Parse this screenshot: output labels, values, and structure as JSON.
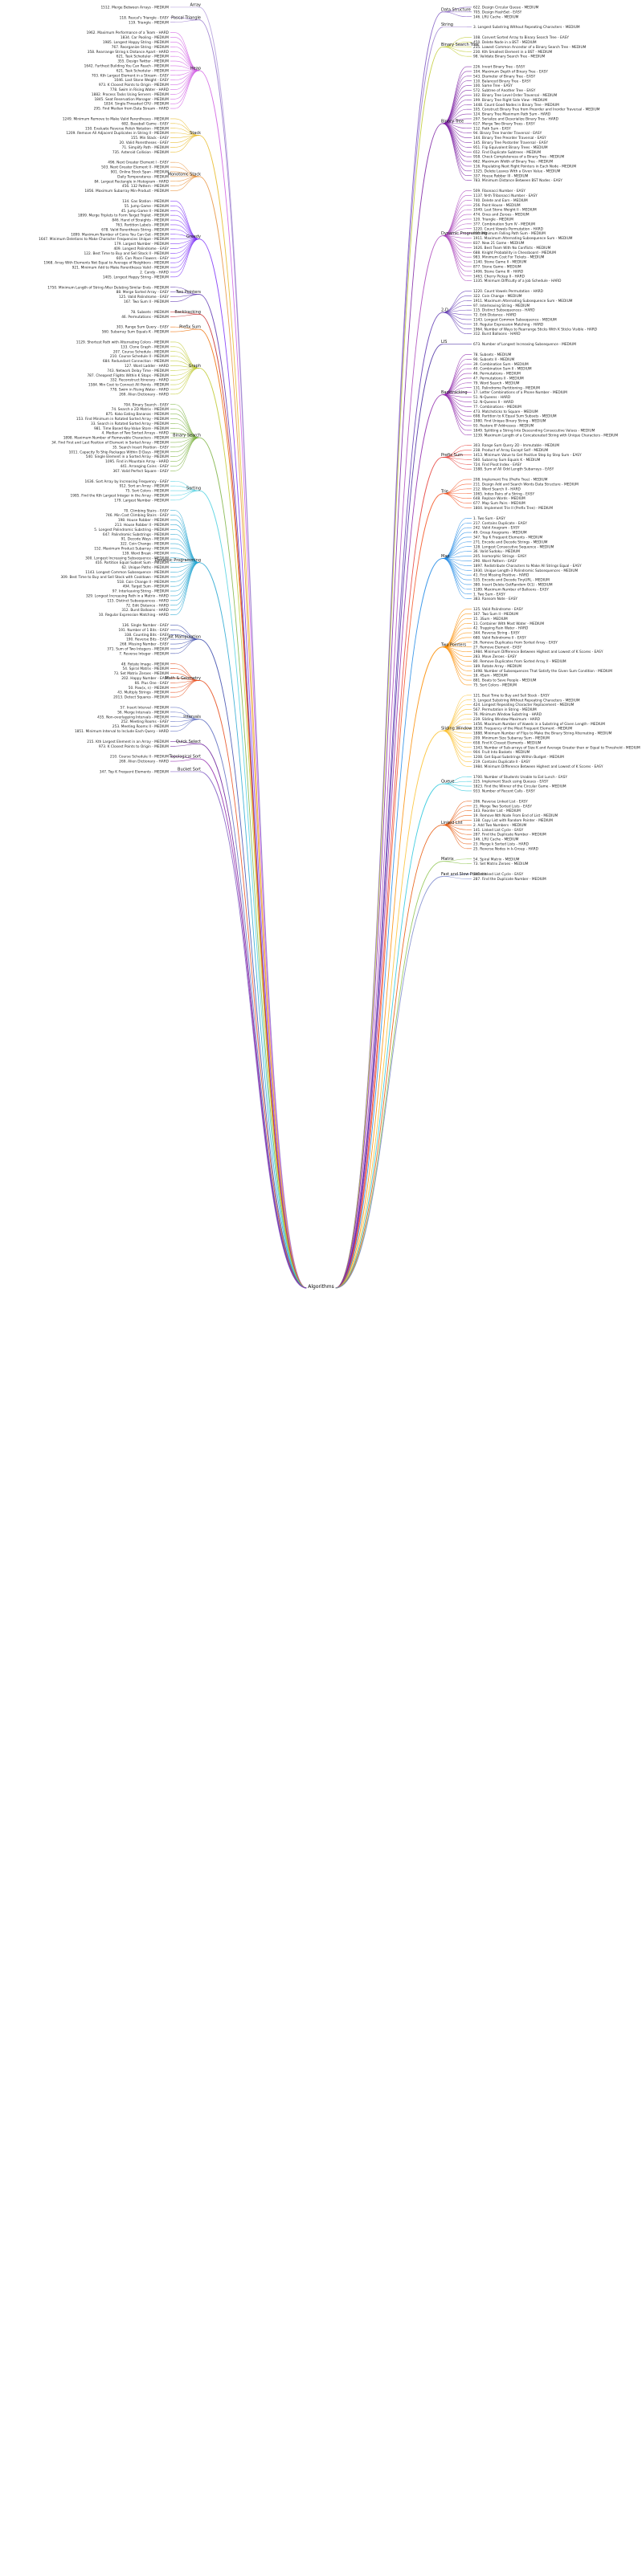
{
  "root": "Algorithms",
  "left": [
    {
      "name": "Array",
      "color": "#b39ddb",
      "items": [
        "1512. Merge Between Arrays - MEDIUM"
      ]
    },
    {
      "name": "Pascal Triangle",
      "color": "#9575cd",
      "items": [
        "118. Pascal's Triangle - EASY",
        "119. Triangle - MEDIUM"
      ]
    },
    {
      "name": "Heap",
      "color": "#d05ce3",
      "items": [
        "1962. Maximum Performance of a Team - HARD",
        "1834. Car Pooling - MEDIUM",
        "1985. Longest Happy String - MEDIUM",
        "767. Reorganize String - MEDIUM",
        "358. Rearrange String k Distance Apart - HARD",
        "621. Task Scheduler - MEDIUM",
        "355. Design Twitter - MEDIUM",
        "1642. Furthest Building You Can Reach - MEDIUM",
        "621. Task Scheduler - MEDIUM",
        "703. Kth Largest Element in a Stream - EASY",
        "1046. Last Stone Weight - EASY",
        "973. K Closest Points to Origin - MEDIUM",
        "778. Swim in Rising Water - HARD",
        "1882. Process Tasks Using Servers - MEDIUM",
        "1845. Seat Reservation Manager - MEDIUM",
        "1834. Single-Threaded CPU - MEDIUM",
        "295. Find Median from Data Stream - HARD"
      ]
    },
    {
      "name": "Stack",
      "color": "#e8b923",
      "items": [
        "1249. Minimum Remove to Make Valid Parentheses - MEDIUM",
        "682. Baseball Game - EASY",
        "150. Evaluate Reverse Polish Notation - MEDIUM",
        "1209. Remove All Adjacent Duplicates in String II - MEDIUM",
        "155. Min Stack - EASY",
        "20. Valid Parentheses - EASY",
        "71. Simplify Path - MEDIUM",
        "735. Asteroid Collision - MEDIUM"
      ]
    },
    {
      "name": "Monotonic Stack",
      "color": "#e8913a",
      "items": [
        "496. Next Greater Element I - EASY",
        "503. Next Greater Element II - MEDIUM",
        "901. Online Stock Span - MEDIUM",
        "Daily Temperatures - MEDIUM",
        "84. Largest Rectangle in Histogram - HARD",
        "456. 132 Pattern - MEDIUM",
        "1856. Maximum Subarray Min-Product - MEDIUM"
      ]
    },
    {
      "name": "Greedy",
      "color": "#7b2ff7",
      "items": [
        "134. Gas Station - MEDIUM",
        "55. Jump Game - MEDIUM",
        "45. Jump Game II - MEDIUM",
        "1899. Merge Triplets to Form Target Triplet - MEDIUM",
        "846. Hand of Straights - MEDIUM",
        "763. Partition Labels - MEDIUM",
        "678. Valid Parenthesis String - MEDIUM",
        "1899. Maximum Number of Coins You Can Get - MEDIUM",
        "1647. Minimum Deletions to Make Character Frequencies Unique - MEDIUM",
        "179. Largest Number - MEDIUM",
        "409. Longest Palindrome - EASY",
        "122. Best Time to Buy and Sell Stock II - MEDIUM",
        "605. Can Place Flowers - EASY",
        "1968. Array With Elements Not Equal to Average of Neighbors - MEDIUM",
        "921. Minimum Add to Make Parentheses Valid - MEDIUM",
        "2. Candy - HARD",
        "1405. Longest Happy String - MEDIUM"
      ]
    },
    {
      "name": "Two Pointers",
      "color": "#5e35b1",
      "items": [
        "1750. Minimum Length of String After Deleting Similar Ends - MEDIUM",
        "88. Merge Sorted Array - EASY",
        "125. Valid Palindrome - EASY",
        "167. Two Sum II - MEDIUM"
      ]
    },
    {
      "name": "Backtracking",
      "color": "#c62828",
      "items": [
        "78. Subsets - MEDIUM",
        "46. Permutations - MEDIUM"
      ]
    },
    {
      "name": "Prefix Sum",
      "color": "#ef6c00",
      "items": [
        "303. Range Sum Query - EASY",
        "560. Subarray Sum Equals K - MEDIUM"
      ]
    },
    {
      "name": "Graph",
      "color": "#c0ca33",
      "items": [
        "1129. Shortest Path with Alternating Colors - MEDIUM",
        "133. Clone Graph - MEDIUM",
        "207. Course Schedule - MEDIUM",
        "210. Course Schedule II - MEDIUM",
        "684. Redundant Connection - MEDIUM",
        "127. Word Ladder - HARD",
        "743. Network Delay Time - MEDIUM",
        "787. Cheapest Flights Within K Stops - MEDIUM",
        "332. Reconstruct Itinerary - HARD",
        "1584. Min Cost to Connect All Points - MEDIUM",
        "778. Swim in Rising Water - HARD",
        "269. Alien Dictionary - HARD"
      ]
    },
    {
      "name": "Binary Search",
      "color": "#7cb342",
      "items": [
        "704. Binary Search - EASY",
        "74. Search a 2D Matrix - MEDIUM",
        "875. Koko Eating Bananas - MEDIUM",
        "153. Find Minimum in Rotated Sorted Array - MEDIUM",
        "33. Search in Rotated Sorted Array - MEDIUM",
        "981. Time Based Key-Value Store - MEDIUM",
        "4. Median of Two Sorted Arrays - HARD",
        "1898. Maximum Number of Removable Characters - MEDIUM",
        "34. Find First and Last Position of Element in Sorted Array - MEDIUM",
        "35. Search Insert Position - EASY",
        "1011. Capacity To Ship Packages Within D Days - MEDIUM",
        "540. Single Element in a Sorted Array - MEDIUM",
        "1095. Find in Mountain Array - HARD",
        "441. Arranging Coins - EASY",
        "367. Valid Perfect Square - EASY"
      ]
    },
    {
      "name": "Sorting",
      "color": "#4dd0e1",
      "items": [
        "1636. Sort Array by Increasing Frequency - EASY",
        "912. Sort an Array - MEDIUM",
        "75. Sort Colors - MEDIUM",
        "1985. Find the Kth Largest Integer in the Array - MEDIUM",
        "179. Largest Number - MEDIUM"
      ]
    },
    {
      "name": "Dynamic Programming",
      "color": "#26a6d1",
      "items": [
        "70. Climbing Stairs - EASY",
        "746. Min Cost Climbing Stairs - EASY",
        "198. House Robber - MEDIUM",
        "213. House Robber II - MEDIUM",
        "5. Longest Palindromic Substring - MEDIUM",
        "647. Palindromic Substrings - MEDIUM",
        "91. Decode Ways - MEDIUM",
        "322. Coin Change - MEDIUM",
        "152. Maximum Product Subarray - MEDIUM",
        "139. Word Break - MEDIUM",
        "300. Longest Increasing Subsequence - MEDIUM",
        "416. Partition Equal Subset Sum - MEDIUM",
        "62. Unique Paths - MEDIUM",
        "1143. Longest Common Subsequence - MEDIUM",
        "309. Best Time to Buy and Sell Stock with Cooldown - MEDIUM",
        "518. Coin Change II - MEDIUM",
        "494. Target Sum - MEDIUM",
        "97. Interleaving String - MEDIUM",
        "329. Longest Increasing Path in a Matrix - HARD",
        "115. Distinct Subsequences - HARD",
        "72. Edit Distance - HARD",
        "312. Burst Balloons - HARD",
        "10. Regular Expression Matching - HARD"
      ]
    },
    {
      "name": "Bit Manipulation",
      "color": "#3949ab",
      "items": [
        "136. Single Number - EASY",
        "191. Number of 1 Bits - EASY",
        "338. Counting Bits - EASY",
        "190. Reverse Bits - EASY",
        "268. Missing Number - EASY",
        "371. Sum of Two Integers - MEDIUM",
        "7. Reverse Integer - MEDIUM"
      ]
    },
    {
      "name": "Math & Geometry",
      "color": "#e64a19",
      "items": [
        "48. Rotate Image - MEDIUM",
        "54. Spiral Matrix - MEDIUM",
        "73. Set Matrix Zeroes - MEDIUM",
        "202. Happy Number - EASY",
        "66. Plus One - EASY",
        "50. Pow(x, n) - MEDIUM",
        "43. Multiply Strings - MEDIUM",
        "2013. Detect Squares - MEDIUM"
      ]
    },
    {
      "name": "Intervals",
      "color": "#5c6bc0",
      "items": [
        "57. Insert Interval - MEDIUM",
        "56. Merge Intervals - MEDIUM",
        "435. Non-overlapping Intervals - MEDIUM",
        "252. Meeting Rooms - EASY",
        "253. Meeting Rooms II - MEDIUM",
        "1851. Minimum Interval to Include Each Query - HARD"
      ]
    },
    {
      "name": "Quick Select",
      "color": "#6a1b9a",
      "items": [
        "215. Kth Largest Element in an Array - MEDIUM",
        "973. K Closest Points to Origin - MEDIUM"
      ]
    },
    {
      "name": "Topological Sort",
      "color": "#8e24aa",
      "items": [
        "210. Course Schedule II - MEDIUM",
        "269. Alien Dictionary - HARD"
      ]
    },
    {
      "name": "Bucket Sort",
      "color": "#7e57c2",
      "items": [
        "347. Top K Frequent Elements - MEDIUM"
      ]
    }
  ],
  "right": [
    {
      "name": "Data Structure",
      "color": "#7e57c2",
      "items": [
        "622. Design Circular Queue - MEDIUM",
        "705. Design HashSet - EASY",
        "146. LRU Cache - MEDIUM"
      ]
    },
    {
      "name": "String",
      "color": "#9575cd",
      "items": [
        "3. Longest Substring Without Repeating Characters - MEDIUM"
      ]
    },
    {
      "name": "Binary Search Tree",
      "color": "#c0ca33",
      "items": [
        "108. Convert Sorted Array to Binary Search Tree - EASY",
        "450. Delete Node in a BST - MEDIUM",
        "235. Lowest Common Ancestor of a Binary Search Tree - MEDIUM",
        "230. Kth Smallest Element in a BST - MEDIUM",
        "98. Validate Binary Search Tree - MEDIUM"
      ]
    },
    {
      "name": "Binary Tree",
      "color": "#7b1fa2",
      "items": [
        "226. Invert Binary Tree - EASY",
        "104. Maximum Depth of Binary Tree - EASY",
        "543. Diameter of Binary Tree - EASY",
        "110. Balanced Binary Tree - EASY",
        "100. Same Tree - EASY",
        "572. Subtree of Another Tree - EASY",
        "102. Binary Tree Level Order Traversal - MEDIUM",
        "199. Binary Tree Right Side View - MEDIUM",
        "1448. Count Good Nodes in Binary Tree - MEDIUM",
        "105. Construct Binary Tree from Preorder and Inorder Traversal - MEDIUM",
        "124. Binary Tree Maximum Path Sum - HARD",
        "297. Serialize and Deserialize Binary Tree - HARD",
        "617. Merge Two Binary Trees - EASY",
        "112. Path Sum - EASY",
        "94. Binary Tree Inorder Traversal - EASY",
        "144. Binary Tree Preorder Traversal - EASY",
        "145. Binary Tree Postorder Traversal - EASY",
        "951. Flip Equivalent Binary Trees - MEDIUM",
        "652. Find Duplicate Subtrees - MEDIUM",
        "958. Check Completeness of a Binary Tree - MEDIUM",
        "662. Maximum Width of Binary Tree - MEDIUM",
        "116. Populating Next Right Pointers in Each Node - MEDIUM",
        "1325. Delete Leaves With a Given Value - MEDIUM",
        "337. House Robber III - MEDIUM",
        "783. Minimum Distance Between BST Nodes - EASY"
      ]
    },
    {
      "name": "Dynamic Programming",
      "color": "#ab47bc",
      "items": [
        "509. Fibonacci Number - EASY",
        "1137. N-th Tribonacci Number - EASY",
        "740. Delete and Earn - MEDIUM",
        "256. Paint House - MEDIUM",
        "1049. Last Stone Weight II - MEDIUM",
        "474. Ones and Zeroes - MEDIUM",
        "120. Triangle - MEDIUM",
        "377. Combination Sum IV - MEDIUM",
        "1220. Count Vowels Permutation - HARD",
        "931. Minimum Falling Path Sum - MEDIUM",
        "1911. Maximum Alternating Subsequence Sum - MEDIUM",
        "837. New 21 Game - MEDIUM",
        "1626. Best Team With No Conflicts - MEDIUM",
        "688. Knight Probability in Chessboard - MEDIUM",
        "983. Minimum Cost For Tickets - MEDIUM",
        "1140. Stone Game II - MEDIUM",
        "877. Stone Game - MEDIUM",
        "1406. Stone Game III - HARD",
        "1463. Cherry Pickup II - HARD",
        "1335. Minimum Difficulty of a Job Schedule - HARD"
      ]
    },
    {
      "name": "2-D",
      "color": "#5e35b1",
      "items": [
        "1220. Count Vowels Permutation - HARD",
        "322. Coin Change - MEDIUM",
        "1911. Maximum Alternating Subsequence Sum - MEDIUM",
        "97. Interleaving String - MEDIUM",
        "115. Distinct Subsequences - HARD",
        "72. Edit Distance - HARD",
        "1143. Longest Common Subsequence - MEDIUM",
        "10. Regular Expression Matching - HARD",
        "1964. Number of Ways to Rearrange Sticks With K Sticks Visible - HARD",
        "312. Burst Balloons - HARD"
      ]
    },
    {
      "name": "LIS",
      "color": "#4527a0",
      "items": [
        "673. Number of Longest Increasing Subsequence - MEDIUM"
      ]
    },
    {
      "name": "Backtracking",
      "color": "#8e24aa",
      "items": [
        "78. Subsets - MEDIUM",
        "90. Subsets II - MEDIUM",
        "39. Combination Sum - MEDIUM",
        "40. Combination Sum II - MEDIUM",
        "46. Permutations - MEDIUM",
        "47. Permutations II - MEDIUM",
        "79. Word Search - MEDIUM",
        "131. Palindrome Partitioning - MEDIUM",
        "17. Letter Combinations of a Phone Number - MEDIUM",
        "51. N-Queens - HARD",
        "52. N-Queens II - HARD",
        "77. Combinations - MEDIUM",
        "473. Matchsticks to Square - MEDIUM",
        "698. Partition to K Equal Sum Subsets - MEDIUM",
        "1980. Find Unique Binary String - MEDIUM",
        "93. Restore IP Addresses - MEDIUM",
        "1849. Splitting a String Into Descending Consecutive Values - MEDIUM",
        "1239. Maximum Length of a Concatenated String with Unique Characters - MEDIUM"
      ]
    },
    {
      "name": "Prefix Sum",
      "color": "#e53935",
      "items": [
        "303. Range Sum Query 2D - Immutable - MEDIUM",
        "238. Product of Array Except Self - MEDIUM",
        "1413. Minimum Value to Get Positive Step by Step Sum - EASY",
        "560. Subarray Sum Equals K - MEDIUM",
        "724. Find Pivot Index - EASY",
        "1588. Sum of All Odd Length Subarrays - EASY"
      ]
    },
    {
      "name": "Trie",
      "color": "#f4511e",
      "items": [
        "208. Implement Trie (Prefix Tree) - MEDIUM",
        "211. Design Add and Search Words Data Structure - MEDIUM",
        "212. Word Search II - HARD",
        "1065. Index Pairs of a String - EASY",
        "648. Replace Words - MEDIUM",
        "677. Map Sum Pairs - MEDIUM",
        "1804. Implement Trie II (Prefix Tree) - MEDIUM"
      ]
    },
    {
      "name": "Map",
      "color": "#1e88e5",
      "items": [
        "1. Two Sum - EASY",
        "217. Contains Duplicate - EASY",
        "242. Valid Anagram - EASY",
        "49. Group Anagrams - MEDIUM",
        "347. Top K Frequent Elements - MEDIUM",
        "271. Encode and Decode Strings - MEDIUM",
        "128. Longest Consecutive Sequence - MEDIUM",
        "36. Valid Sudoku - MEDIUM",
        "205. Isomorphic Strings - EASY",
        "290. Word Pattern - EASY",
        "1897. Redistribute Characters to Make All Strings Equal - EASY",
        "1930. Unique Length-3 Palindromic Subsequences - MEDIUM",
        "41. First Missing Positive - HARD",
        "535. Encode and Decode TinyURL - MEDIUM",
        "380. Insert Delete GetRandom O(1) - MEDIUM",
        "1189. Maximum Number of Balloons - EASY",
        "1. Two Sum - EASY",
        "383. Ransom Note - EASY"
      ]
    },
    {
      "name": "Two Pointers",
      "color": "#fb8c00",
      "items": [
        "125. Valid Palindrome - EASY",
        "167. Two Sum II - MEDIUM",
        "15. 3Sum - MEDIUM",
        "11. Container With Most Water - MEDIUM",
        "42. Trapping Rain Water - HARD",
        "344. Reverse String - EASY",
        "680. Valid Palindrome II - EASY",
        "26. Remove Duplicates from Sorted Array - EASY",
        "27. Remove Element - EASY",
        "1984. Minimum Difference Between Highest and Lowest of K Scores - EASY",
        "283. Move Zeroes - EASY",
        "80. Remove Duplicates from Sorted Array II - MEDIUM",
        "189. Rotate Array - MEDIUM",
        "1498. Number of Subsequences That Satisfy the Given Sum Condition - MEDIUM",
        "18. 4Sum - MEDIUM",
        "881. Boats to Save People - MEDIUM",
        "75. Sort Colors - MEDIUM"
      ]
    },
    {
      "name": "Sliding Window",
      "color": "#fbc02d",
      "items": [
        "121. Best Time to Buy and Sell Stock - EASY",
        "3. Longest Substring Without Repeating Characters - MEDIUM",
        "424. Longest Repeating Character Replacement - MEDIUM",
        "567. Permutation in String - MEDIUM",
        "76. Minimum Window Substring - HARD",
        "239. Sliding Window Maximum - HARD",
        "1456. Maximum Number of Vowels in a Substring of Given Length - MEDIUM",
        "1838. Frequency of the Most Frequent Element - MEDIUM",
        "1888. Minimum Number of Flips to Make the Binary String Alternating - MEDIUM",
        "209. Minimum Size Subarray Sum - MEDIUM",
        "658. Find K Closest Elements - MEDIUM",
        "1343. Number of Sub-arrays of Size K and Average Greater than or Equal to Threshold - MEDIUM",
        "904. Fruit Into Baskets - MEDIUM",
        "1208. Get Equal Substrings Within Budget - MEDIUM",
        "219. Contains Duplicate II - EASY",
        "1984. Minimum Difference Between Highest and Lowest of K Scores - EASY"
      ]
    },
    {
      "name": "Queue",
      "color": "#26c6da",
      "items": [
        "1700. Number of Students Unable to Eat Lunch - EASY",
        "225. Implement Stack using Queues - EASY",
        "1823. Find the Winner of the Circular Game - MEDIUM",
        "933. Number of Recent Calls - EASY"
      ]
    },
    {
      "name": "Linked List",
      "color": "#e65100",
      "items": [
        "206. Reverse Linked List - EASY",
        "21. Merge Two Sorted Lists - EASY",
        "143. Reorder List - MEDIUM",
        "19. Remove Nth Node From End of List - MEDIUM",
        "138. Copy List with Random Pointer - MEDIUM",
        "2. Add Two Numbers - MEDIUM",
        "141. Linked List Cycle - EASY",
        "287. Find the Duplicate Number - MEDIUM",
        "146. LRU Cache - MEDIUM",
        "23. Merge k Sorted Lists - HARD",
        "25. Reverse Nodes in k-Group - HARD"
      ]
    },
    {
      "name": "Matrix",
      "color": "#8bc34a",
      "items": [
        "54. Spiral Matrix - MEDIUM",
        "73. Set Matrix Zeroes - MEDIUM"
      ]
    },
    {
      "name": "Fast and Slow Pointers",
      "color": "#7986cb",
      "items": [
        "141. Linked List Cycle - EASY",
        "287. Find the Duplicate Number - MEDIUM"
      ]
    }
  ]
}
